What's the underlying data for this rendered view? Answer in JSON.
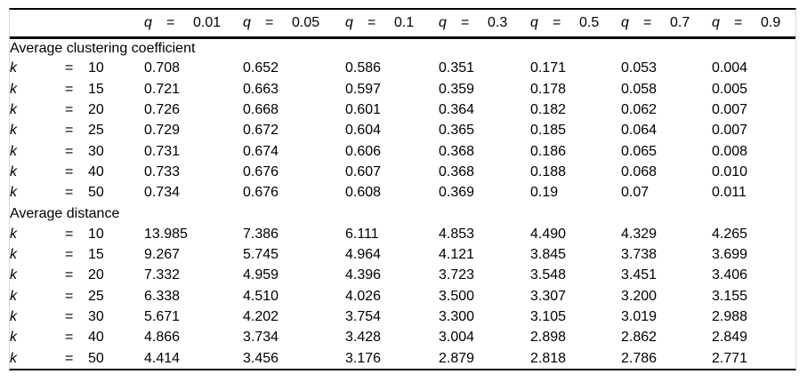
{
  "table": {
    "row_label_var": "k",
    "column_var": "q",
    "equals_sign": "=",
    "column_values": [
      "0.01",
      "0.05",
      "0.1",
      "0.3",
      "0.5",
      "0.7",
      "0.9"
    ],
    "sections": [
      {
        "title": "Average clustering coefficient",
        "rows": [
          {
            "k": "10",
            "values": [
              "0.708",
              "0.652",
              "0.586",
              "0.351",
              "0.171",
              "0.053",
              "0.004"
            ]
          },
          {
            "k": "15",
            "values": [
              "0.721",
              "0.663",
              "0.597",
              "0.359",
              "0.178",
              "0.058",
              "0.005"
            ]
          },
          {
            "k": "20",
            "values": [
              "0.726",
              "0.668",
              "0.601",
              "0.364",
              "0.182",
              "0.062",
              "0.007"
            ]
          },
          {
            "k": "25",
            "values": [
              "0.729",
              "0.672",
              "0.604",
              "0.365",
              "0.185",
              "0.064",
              "0.007"
            ]
          },
          {
            "k": "30",
            "values": [
              "0.731",
              "0.674",
              "0.606",
              "0.368",
              "0.186",
              "0.065",
              "0.008"
            ]
          },
          {
            "k": "40",
            "values": [
              "0.733",
              "0.676",
              "0.607",
              "0.368",
              "0.188",
              "0.068",
              "0.010"
            ]
          },
          {
            "k": "50",
            "values": [
              "0.734",
              "0.676",
              "0.608",
              "0.369",
              "0.19",
              "0.07",
              "0.011"
            ]
          }
        ]
      },
      {
        "title": "Average distance",
        "rows": [
          {
            "k": "10",
            "values": [
              "13.985",
              "7.386",
              "6.111",
              "4.853",
              "4.490",
              "4.329",
              "4.265"
            ]
          },
          {
            "k": "15",
            "values": [
              "9.267",
              "5.745",
              "4.964",
              "4.121",
              "3.845",
              "3.738",
              "3.699"
            ]
          },
          {
            "k": "20",
            "values": [
              "7.332",
              "4.959",
              "4.396",
              "3.723",
              "3.548",
              "3.451",
              "3.406"
            ]
          },
          {
            "k": "25",
            "values": [
              "6.338",
              "4.510",
              "4.026",
              "3.500",
              "3.307",
              "3.200",
              "3.155"
            ]
          },
          {
            "k": "30",
            "values": [
              "5.671",
              "4.202",
              "3.754",
              "3.300",
              "3.105",
              "3.019",
              "2.988"
            ]
          },
          {
            "k": "40",
            "values": [
              "4.866",
              "3.734",
              "3.428",
              "3.004",
              "2.898",
              "2.862",
              "2.849"
            ]
          },
          {
            "k": "50",
            "values": [
              "4.414",
              "3.456",
              "3.176",
              "2.879",
              "2.818",
              "2.786",
              "2.771"
            ]
          }
        ]
      }
    ]
  },
  "colors": {
    "rule": "#000000",
    "side_border": "#d9d9d9",
    "text": "#000000",
    "background": "#ffffff"
  }
}
